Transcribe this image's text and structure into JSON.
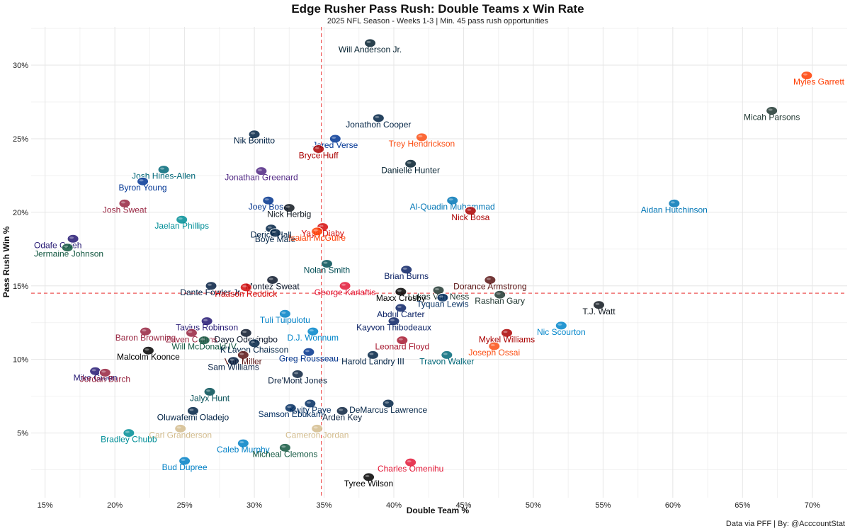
{
  "chart_data": {
    "type": "scatter",
    "title": "Edge Rusher Pass Rush: Double Teams x Win Rate",
    "subtitle": "2025 NFL Season - Weeks 1-3 | Min. 45 pass rush opportunities",
    "xlabel": "Double Team %",
    "ylabel": "Pass Rush Win %",
    "caption": "Data via PFF | By: @AcccountStat",
    "xlim": [
      14.0,
      72.5
    ],
    "ylim": [
      0.6,
      32.6
    ],
    "x_ticks": [
      "15%",
      "20%",
      "25%",
      "30%",
      "35%",
      "40%",
      "45%",
      "50%",
      "55%",
      "60%",
      "65%",
      "70%"
    ],
    "x_tick_values": [
      15,
      20,
      25,
      30,
      35,
      40,
      45,
      50,
      55,
      60,
      65,
      70
    ],
    "y_ticks": [
      "5%",
      "10%",
      "15%",
      "20%",
      "25%",
      "30%"
    ],
    "y_tick_values": [
      5,
      10,
      15,
      20,
      25,
      30
    ],
    "grid": true,
    "ref_lines": {
      "x": 34.8,
      "y": 14.5
    },
    "points": [
      {
        "name": "Will Anderson Jr.",
        "x": 38.3,
        "y": 31.5,
        "color": "#03202f"
      },
      {
        "name": "Myles Garrett",
        "x": 69.6,
        "y": 29.3,
        "color": "#ff3c00"
      },
      {
        "name": "Micah Parsons",
        "x": 67.1,
        "y": 26.9,
        "color": "#203731"
      },
      {
        "name": "Jonathon Cooper",
        "x": 38.9,
        "y": 26.4,
        "color": "#002244"
      },
      {
        "name": "Trey Hendrickson",
        "x": 42.0,
        "y": 25.1,
        "color": "#fb4f14"
      },
      {
        "name": "Nik Bonitto",
        "x": 30.0,
        "y": 25.3,
        "color": "#002244"
      },
      {
        "name": "Jared Verse",
        "x": 35.8,
        "y": 25.0,
        "color": "#003594"
      },
      {
        "name": "Bryce Huff",
        "x": 34.6,
        "y": 24.3,
        "color": "#aa0000"
      },
      {
        "name": "Danielle Hunter",
        "x": 41.2,
        "y": 23.3,
        "color": "#03202f"
      },
      {
        "name": "Josh Hines-Allen",
        "x": 23.5,
        "y": 22.9,
        "color": "#006778"
      },
      {
        "name": "Jonathan Greenard",
        "x": 30.5,
        "y": 22.8,
        "color": "#4f2683"
      },
      {
        "name": "Byron Young",
        "x": 22.0,
        "y": 22.1,
        "color": "#003594"
      },
      {
        "name": "Josh Sweat",
        "x": 20.7,
        "y": 20.6,
        "color": "#97233f"
      },
      {
        "name": "Joey Bosa",
        "x": 31.0,
        "y": 20.8,
        "color": "#00338d"
      },
      {
        "name": "Nick Herbig",
        "x": 32.5,
        "y": 20.3,
        "color": "#101820"
      },
      {
        "name": "Al-Quadin Muhammad",
        "x": 44.2,
        "y": 20.8,
        "color": "#0076b6"
      },
      {
        "name": "Nick Bosa",
        "x": 45.5,
        "y": 20.1,
        "color": "#aa0000"
      },
      {
        "name": "Aidan Hutchinson",
        "x": 60.1,
        "y": 20.6,
        "color": "#0076b6"
      },
      {
        "name": "Jaelan Phillips",
        "x": 24.8,
        "y": 19.5,
        "color": "#008e97"
      },
      {
        "name": "Derick Hall",
        "x": 31.2,
        "y": 18.9,
        "color": "#002244"
      },
      {
        "name": "Yaya Diaby",
        "x": 34.9,
        "y": 19.0,
        "color": "#d50a0a"
      },
      {
        "name": "Boye Mafe",
        "x": 31.5,
        "y": 18.6,
        "color": "#002244"
      },
      {
        "name": "Isaiah McGuire",
        "x": 34.5,
        "y": 18.7,
        "color": "#ff3c00"
      },
      {
        "name": "Odafe Oweh",
        "x": 17.0,
        "y": 18.2,
        "color": "#241773"
      },
      {
        "name": "Jermaine Johnson",
        "x": 16.6,
        "y": 17.6,
        "color": "#125740"
      },
      {
        "name": "Nolan Smith",
        "x": 35.2,
        "y": 16.5,
        "color": "#004c54"
      },
      {
        "name": "Brian Burns",
        "x": 40.9,
        "y": 16.1,
        "color": "#0b2265"
      },
      {
        "name": "Dorance Armstrong",
        "x": 46.9,
        "y": 15.4,
        "color": "#5a1414"
      },
      {
        "name": "Montez Sweat",
        "x": 31.3,
        "y": 15.4,
        "color": "#0b162a"
      },
      {
        "name": "Dante Fowler Jr.",
        "x": 26.9,
        "y": 15.0,
        "color": "#041e42"
      },
      {
        "name": "George Karlaftis",
        "x": 36.5,
        "y": 15.0,
        "color": "#e31837"
      },
      {
        "name": "Lukas Van Ness",
        "x": 43.2,
        "y": 14.7,
        "color": "#203731"
      },
      {
        "name": "Rashan Gary",
        "x": 47.6,
        "y": 14.4,
        "color": "#203731"
      },
      {
        "name": "Haason Reddick",
        "x": 29.4,
        "y": 14.9,
        "color": "#d50a0a"
      },
      {
        "name": "Maxx Crosby",
        "x": 40.5,
        "y": 14.6,
        "color": "#000000"
      },
      {
        "name": "Tyquan Lewis",
        "x": 43.5,
        "y": 14.2,
        "color": "#002c5f"
      },
      {
        "name": "T.J. Watt",
        "x": 54.7,
        "y": 13.7,
        "color": "#101820"
      },
      {
        "name": "Abdul Carter",
        "x": 40.5,
        "y": 13.5,
        "color": "#0b2265"
      },
      {
        "name": "Tuli Tuipulotu",
        "x": 32.2,
        "y": 13.1,
        "color": "#0080c6"
      },
      {
        "name": "Tavius Robinson",
        "x": 26.6,
        "y": 12.6,
        "color": "#241773"
      },
      {
        "name": "Kayvon Thibodeaux",
        "x": 40.0,
        "y": 12.6,
        "color": "#0b2265"
      },
      {
        "name": "Nic Scourton",
        "x": 52.0,
        "y": 12.3,
        "color": "#0085ca"
      },
      {
        "name": "Baron Browning",
        "x": 22.2,
        "y": 11.9,
        "color": "#97233f"
      },
      {
        "name": "Zaven Collins",
        "x": 25.5,
        "y": 11.8,
        "color": "#97233f"
      },
      {
        "name": "Dayo Odeyingbo",
        "x": 29.4,
        "y": 11.8,
        "color": "#0b162a"
      },
      {
        "name": "D.J. Wonnum",
        "x": 34.2,
        "y": 11.9,
        "color": "#0085ca"
      },
      {
        "name": "Mykel Williams",
        "x": 48.1,
        "y": 11.8,
        "color": "#aa0000"
      },
      {
        "name": "Leonard Floyd",
        "x": 40.6,
        "y": 11.3,
        "color": "#a71930"
      },
      {
        "name": "Will McDonald IV",
        "x": 26.4,
        "y": 11.3,
        "color": "#125740"
      },
      {
        "name": "K'Lavon Chaisson",
        "x": 30.0,
        "y": 11.1,
        "color": "#002244"
      },
      {
        "name": "Joseph Ossai",
        "x": 47.2,
        "y": 10.9,
        "color": "#fb4f14"
      },
      {
        "name": "Malcolm Koonce",
        "x": 22.4,
        "y": 10.6,
        "color": "#000000"
      },
      {
        "name": "Von Miller",
        "x": 29.2,
        "y": 10.3,
        "color": "#5a1414"
      },
      {
        "name": "Greg Rousseau",
        "x": 33.9,
        "y": 10.5,
        "color": "#00338d"
      },
      {
        "name": "Harold Landry III",
        "x": 38.5,
        "y": 10.3,
        "color": "#002244"
      },
      {
        "name": "Travon Walker",
        "x": 43.8,
        "y": 10.3,
        "color": "#006778"
      },
      {
        "name": "Sam Williams",
        "x": 28.5,
        "y": 9.9,
        "color": "#041e42"
      },
      {
        "name": "Mike Green",
        "x": 18.6,
        "y": 9.2,
        "color": "#241773"
      },
      {
        "name": "Jordan Burch",
        "x": 19.3,
        "y": 9.1,
        "color": "#97233f"
      },
      {
        "name": "Dre'Mont Jones",
        "x": 33.1,
        "y": 9.0,
        "color": "#0c2340"
      },
      {
        "name": "Jalyx Hunt",
        "x": 26.8,
        "y": 7.8,
        "color": "#004c54"
      },
      {
        "name": "Kwity Paye",
        "x": 34.0,
        "y": 7.0,
        "color": "#002c5f"
      },
      {
        "name": "DeMarcus Lawrence",
        "x": 39.6,
        "y": 7.0,
        "color": "#002244"
      },
      {
        "name": "Samson Ebukam",
        "x": 32.6,
        "y": 6.7,
        "color": "#002c5f"
      },
      {
        "name": "Oluwafemi Oladejo",
        "x": 25.6,
        "y": 6.5,
        "color": "#002244"
      },
      {
        "name": "Arden Key",
        "x": 36.3,
        "y": 6.5,
        "color": "#0c2340"
      },
      {
        "name": "Carl Granderson",
        "x": 24.7,
        "y": 5.3,
        "color": "#d3bc8d"
      },
      {
        "name": "Cameron Jordan",
        "x": 34.5,
        "y": 5.3,
        "color": "#d3bc8d"
      },
      {
        "name": "Bradley Chubb",
        "x": 21.0,
        "y": 5.0,
        "color": "#008e97"
      },
      {
        "name": "Caleb Murphy",
        "x": 29.2,
        "y": 4.3,
        "color": "#0080c6"
      },
      {
        "name": "Micheal Clemons",
        "x": 32.2,
        "y": 4.0,
        "color": "#125740"
      },
      {
        "name": "Charles Omenihu",
        "x": 41.2,
        "y": 3.0,
        "color": "#e31837"
      },
      {
        "name": "Bud Dupree",
        "x": 25.0,
        "y": 3.1,
        "color": "#0080c6"
      },
      {
        "name": "Tyree Wilson",
        "x": 38.2,
        "y": 2.0,
        "color": "#000000"
      }
    ]
  }
}
